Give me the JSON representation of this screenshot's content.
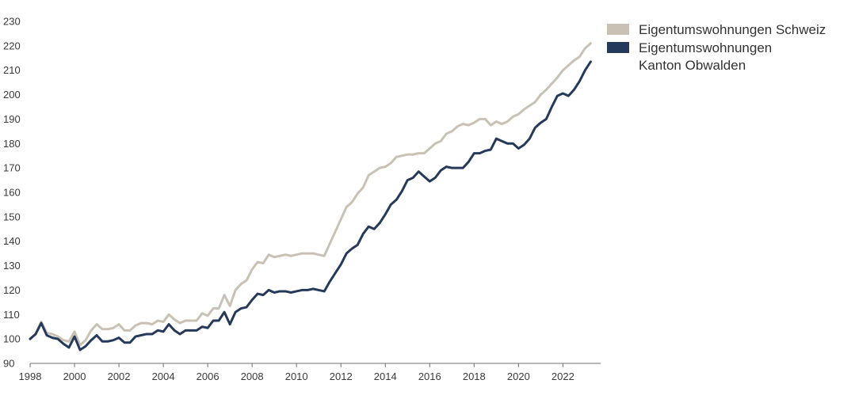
{
  "chart_data": {
    "type": "line",
    "title": "",
    "xlabel": "",
    "ylabel": "",
    "xlim": [
      1998,
      2023.7
    ],
    "ylim": [
      90,
      230
    ],
    "x_ticks": [
      1998,
      2000,
      2002,
      2004,
      2006,
      2008,
      2010,
      2012,
      2014,
      2016,
      2018,
      2020,
      2022
    ],
    "y_ticks": [
      90,
      100,
      110,
      120,
      130,
      140,
      150,
      160,
      170,
      180,
      190,
      200,
      210,
      220,
      230
    ],
    "grid": false,
    "legend_position": "top-right",
    "series": [
      {
        "name": "Eigentumswohnungen Schweiz",
        "color": "#c9c2b4",
        "points": [
          [
            1998.0,
            100
          ],
          [
            1998.25,
            102
          ],
          [
            1998.5,
            107
          ],
          [
            1998.75,
            102.5
          ],
          [
            1999.0,
            102
          ],
          [
            1999.25,
            101
          ],
          [
            1999.5,
            99.5
          ],
          [
            1999.75,
            99
          ],
          [
            2000.0,
            103
          ],
          [
            2000.25,
            97.5
          ],
          [
            2000.5,
            99.5
          ],
          [
            2000.75,
            103.5
          ],
          [
            2001.0,
            106
          ],
          [
            2001.25,
            104
          ],
          [
            2001.5,
            104
          ],
          [
            2001.75,
            104.5
          ],
          [
            2002.0,
            106
          ],
          [
            2002.25,
            103.5
          ],
          [
            2002.5,
            103.5
          ],
          [
            2002.75,
            105.5
          ],
          [
            2003.0,
            106.5
          ],
          [
            2003.25,
            106.5
          ],
          [
            2003.5,
            106
          ],
          [
            2003.75,
            107.5
          ],
          [
            2004.0,
            107
          ],
          [
            2004.25,
            110
          ],
          [
            2004.5,
            108
          ],
          [
            2004.75,
            106.5
          ],
          [
            2005.0,
            107.5
          ],
          [
            2005.25,
            107.5
          ],
          [
            2005.5,
            107.5
          ],
          [
            2005.75,
            110.5
          ],
          [
            2006.0,
            109.5
          ],
          [
            2006.25,
            112.5
          ],
          [
            2006.5,
            112.5
          ],
          [
            2006.75,
            118
          ],
          [
            2007.0,
            113.5
          ],
          [
            2007.25,
            120
          ],
          [
            2007.5,
            122.5
          ],
          [
            2007.75,
            124
          ],
          [
            2008.0,
            128.5
          ],
          [
            2008.25,
            131.5
          ],
          [
            2008.5,
            131
          ],
          [
            2008.75,
            134.5
          ],
          [
            2009.0,
            133.5
          ],
          [
            2009.25,
            134
          ],
          [
            2009.5,
            134.5
          ],
          [
            2009.75,
            134
          ],
          [
            2010.0,
            134.5
          ],
          [
            2010.25,
            135
          ],
          [
            2010.5,
            135
          ],
          [
            2010.75,
            135
          ],
          [
            2011.0,
            134.5
          ],
          [
            2011.25,
            134
          ],
          [
            2011.5,
            139
          ],
          [
            2011.75,
            144
          ],
          [
            2012.0,
            149
          ],
          [
            2012.25,
            154
          ],
          [
            2012.5,
            156
          ],
          [
            2012.75,
            159.5
          ],
          [
            2013.0,
            162
          ],
          [
            2013.25,
            167
          ],
          [
            2013.5,
            168.5
          ],
          [
            2013.75,
            170
          ],
          [
            2014.0,
            170.5
          ],
          [
            2014.25,
            172
          ],
          [
            2014.5,
            174.5
          ],
          [
            2014.75,
            175
          ],
          [
            2015.0,
            175.5
          ],
          [
            2015.25,
            175.5
          ],
          [
            2015.5,
            176
          ],
          [
            2015.75,
            176
          ],
          [
            2016.0,
            178
          ],
          [
            2016.25,
            180
          ],
          [
            2016.5,
            181
          ],
          [
            2016.75,
            184
          ],
          [
            2017.0,
            185
          ],
          [
            2017.25,
            187
          ],
          [
            2017.5,
            188
          ],
          [
            2017.75,
            187.5
          ],
          [
            2018.0,
            188.5
          ],
          [
            2018.25,
            190
          ],
          [
            2018.5,
            190
          ],
          [
            2018.75,
            187.5
          ],
          [
            2019.0,
            189
          ],
          [
            2019.25,
            188
          ],
          [
            2019.5,
            189
          ],
          [
            2019.75,
            191
          ],
          [
            2020.0,
            192
          ],
          [
            2020.25,
            194
          ],
          [
            2020.5,
            195.5
          ],
          [
            2020.75,
            197
          ],
          [
            2021.0,
            200
          ],
          [
            2021.25,
            202
          ],
          [
            2021.5,
            204.5
          ],
          [
            2021.75,
            207
          ],
          [
            2022.0,
            210
          ],
          [
            2022.25,
            212
          ],
          [
            2022.5,
            214
          ],
          [
            2022.75,
            215.5
          ],
          [
            2023.0,
            219
          ],
          [
            2023.25,
            221
          ]
        ]
      },
      {
        "name": "Eigentumswohnungen\nKanton Obwalden",
        "color": "#25395a",
        "points": [
          [
            1998.0,
            100
          ],
          [
            1998.25,
            102
          ],
          [
            1998.5,
            106.5
          ],
          [
            1998.75,
            101.5
          ],
          [
            1999.0,
            100.5
          ],
          [
            1999.25,
            100
          ],
          [
            1999.5,
            98
          ],
          [
            1999.75,
            96.5
          ],
          [
            2000.0,
            101
          ],
          [
            2000.25,
            95.5
          ],
          [
            2000.5,
            97
          ],
          [
            2000.75,
            99.5
          ],
          [
            2001.0,
            101.5
          ],
          [
            2001.25,
            99
          ],
          [
            2001.5,
            99
          ],
          [
            2001.75,
            99.5
          ],
          [
            2002.0,
            100.5
          ],
          [
            2002.25,
            98.5
          ],
          [
            2002.5,
            98.5
          ],
          [
            2002.75,
            101
          ],
          [
            2003.0,
            101.5
          ],
          [
            2003.25,
            102
          ],
          [
            2003.5,
            102
          ],
          [
            2003.75,
            103.5
          ],
          [
            2004.0,
            103
          ],
          [
            2004.25,
            106
          ],
          [
            2004.5,
            103.5
          ],
          [
            2004.75,
            102
          ],
          [
            2005.0,
            103.5
          ],
          [
            2005.25,
            103.5
          ],
          [
            2005.5,
            103.5
          ],
          [
            2005.75,
            105
          ],
          [
            2006.0,
            104.5
          ],
          [
            2006.25,
            107.5
          ],
          [
            2006.5,
            107.5
          ],
          [
            2006.75,
            111
          ],
          [
            2007.0,
            106
          ],
          [
            2007.25,
            111
          ],
          [
            2007.5,
            112.5
          ],
          [
            2007.75,
            113
          ],
          [
            2008.0,
            116
          ],
          [
            2008.25,
            118.5
          ],
          [
            2008.5,
            118
          ],
          [
            2008.75,
            120
          ],
          [
            2009.0,
            119
          ],
          [
            2009.25,
            119.5
          ],
          [
            2009.5,
            119.5
          ],
          [
            2009.75,
            119
          ],
          [
            2010.0,
            119.5
          ],
          [
            2010.25,
            120
          ],
          [
            2010.5,
            120
          ],
          [
            2010.75,
            120.5
          ],
          [
            2011.0,
            120
          ],
          [
            2011.25,
            119.5
          ],
          [
            2011.5,
            123.5
          ],
          [
            2011.75,
            127
          ],
          [
            2012.0,
            130.5
          ],
          [
            2012.25,
            135
          ],
          [
            2012.5,
            137
          ],
          [
            2012.75,
            138.5
          ],
          [
            2013.0,
            143
          ],
          [
            2013.25,
            146
          ],
          [
            2013.5,
            145
          ],
          [
            2013.75,
            147.5
          ],
          [
            2014.0,
            151
          ],
          [
            2014.25,
            155
          ],
          [
            2014.5,
            157
          ],
          [
            2014.75,
            160.5
          ],
          [
            2015.0,
            165
          ],
          [
            2015.25,
            166
          ],
          [
            2015.5,
            168.5
          ],
          [
            2015.75,
            166.5
          ],
          [
            2016.0,
            164.5
          ],
          [
            2016.25,
            166
          ],
          [
            2016.5,
            169
          ],
          [
            2016.75,
            170.5
          ],
          [
            2017.0,
            170
          ],
          [
            2017.25,
            170
          ],
          [
            2017.5,
            170
          ],
          [
            2017.75,
            172.5
          ],
          [
            2018.0,
            176
          ],
          [
            2018.25,
            176
          ],
          [
            2018.5,
            177
          ],
          [
            2018.75,
            177.5
          ],
          [
            2019.0,
            182
          ],
          [
            2019.25,
            181
          ],
          [
            2019.5,
            180
          ],
          [
            2019.75,
            180
          ],
          [
            2020.0,
            178
          ],
          [
            2020.25,
            179.5
          ],
          [
            2020.5,
            182
          ],
          [
            2020.75,
            186.5
          ],
          [
            2021.0,
            188.5
          ],
          [
            2021.25,
            190
          ],
          [
            2021.5,
            195
          ],
          [
            2021.75,
            199.5
          ],
          [
            2022.0,
            200.5
          ],
          [
            2022.25,
            199.5
          ],
          [
            2022.5,
            202
          ],
          [
            2022.75,
            205.5
          ],
          [
            2023.0,
            210
          ],
          [
            2023.25,
            213.5
          ]
        ]
      }
    ]
  }
}
